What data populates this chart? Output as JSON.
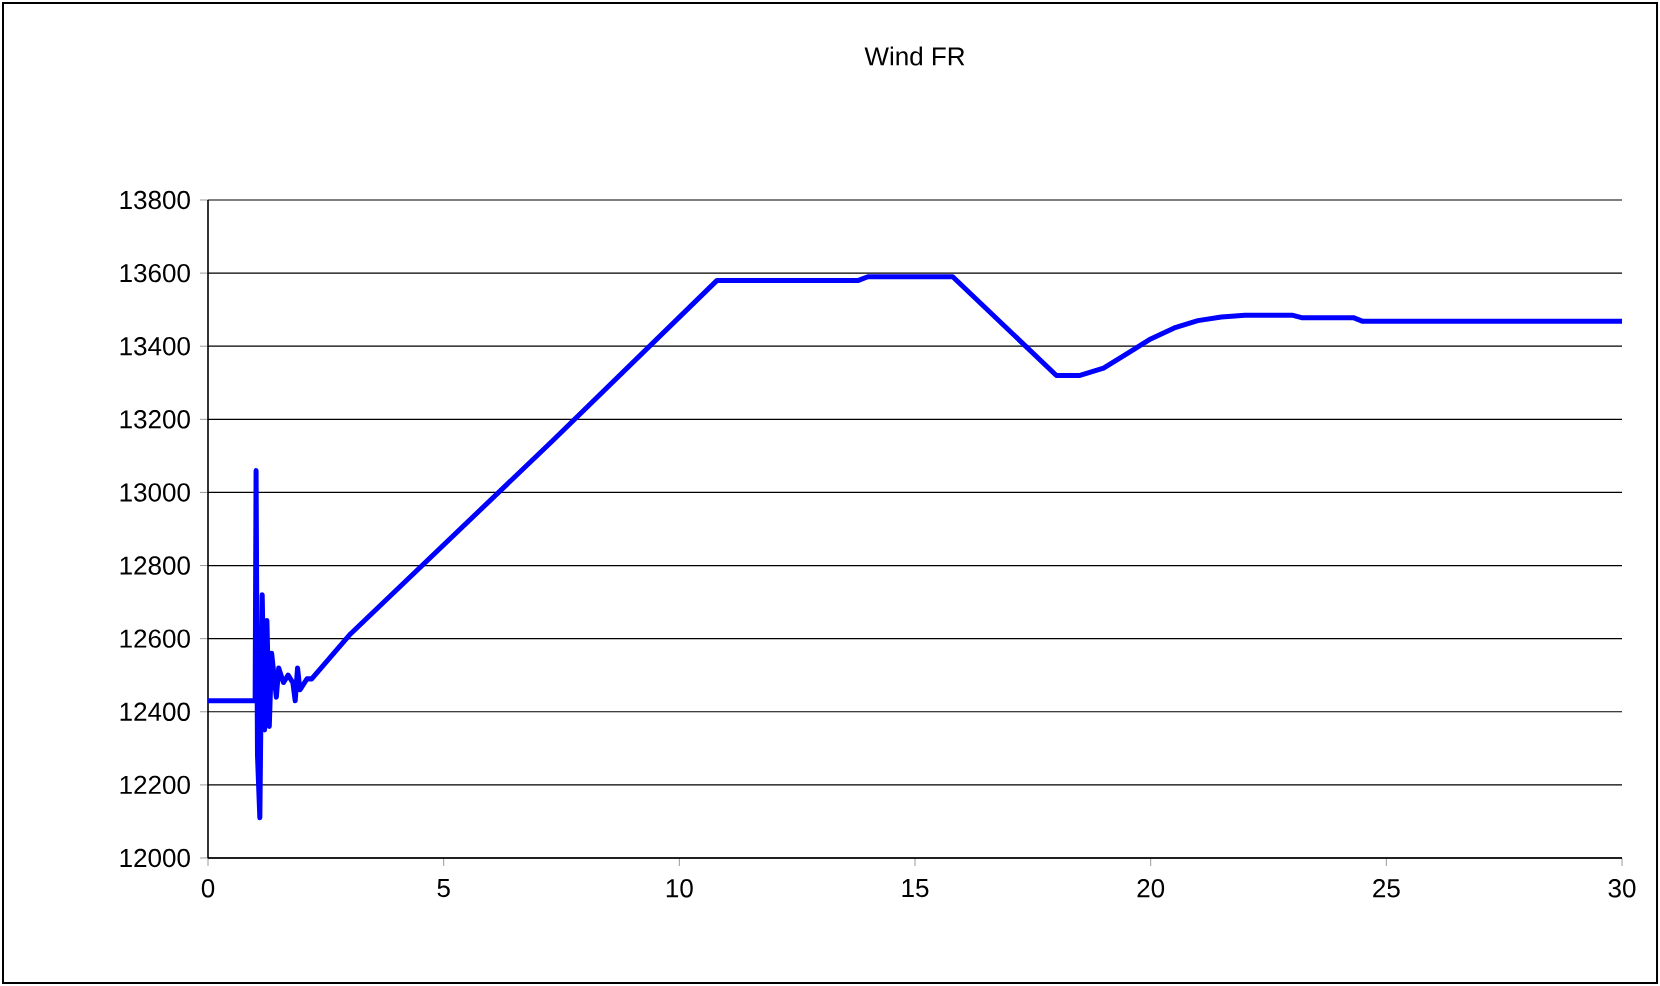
{
  "chart_data": {
    "type": "line",
    "title": "Wind FR",
    "x": [
      0,
      1,
      1.02,
      1.05,
      1.1,
      1.15,
      1.2,
      1.25,
      1.3,
      1.35,
      1.45,
      1.5,
      1.6,
      1.7,
      1.8,
      1.85,
      1.9,
      1.95,
      2.1,
      2.2,
      3,
      7.3,
      10.8,
      13.8,
      14,
      15.8,
      18,
      18.5,
      19,
      19.5,
      20,
      20.5,
      21,
      21.5,
      22,
      23,
      23.2,
      24.3,
      24.5,
      30
    ],
    "values": [
      12430,
      12430,
      13060,
      12280,
      12110,
      12720,
      12350,
      12650,
      12360,
      12560,
      12440,
      12520,
      12480,
      12500,
      12480,
      12430,
      12520,
      12460,
      12490,
      12490,
      12610,
      13140,
      13580,
      13580,
      13590,
      13590,
      13320,
      13320,
      13340,
      13380,
      13420,
      13450,
      13470,
      13480,
      13485,
      13485,
      13478,
      13478,
      13468,
      13468
    ],
    "color": "#0000ff",
    "xlim": [
      0,
      30
    ],
    "ylim": [
      12000,
      13800
    ],
    "xticks": [
      0,
      5,
      10,
      15,
      20,
      25,
      30
    ],
    "yticks": [
      12000,
      12200,
      12400,
      12600,
      12800,
      13000,
      13200,
      13400,
      13600,
      13800
    ],
    "grid": "y"
  }
}
